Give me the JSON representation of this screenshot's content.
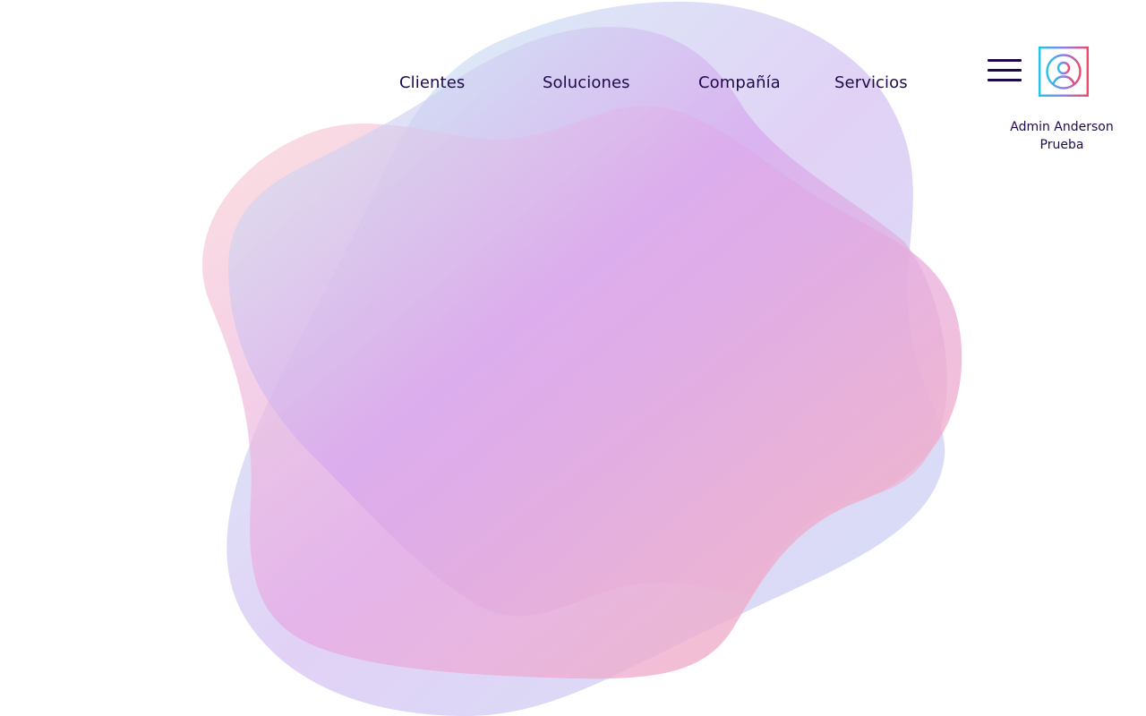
{
  "nav": {
    "items": [
      {
        "label": "Clientes"
      },
      {
        "label": "Soluciones"
      },
      {
        "label": "Compañía"
      },
      {
        "label": "Servicios"
      }
    ]
  },
  "header": {
    "menu_icon": "hamburger-menu-icon",
    "avatar_icon": "user-avatar-icon"
  },
  "user": {
    "name_line1": "Admin Anderson",
    "name_line2": "Prueba"
  },
  "colors": {
    "text": "#1e0a4a",
    "blob_cyan": "#c8f0f6",
    "blob_pink": "#f9c0c4",
    "blob_purple": "#d7a6ee"
  }
}
